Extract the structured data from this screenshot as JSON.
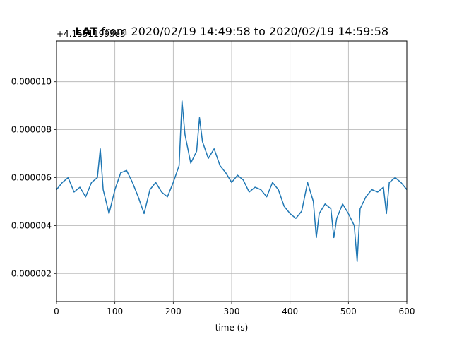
{
  "chart_data": {
    "type": "line",
    "title_bold": "LAT",
    "title_rest": " from 2020/02/19 14:49:58 to 2020/02/19 14:59:58",
    "offset_label": "+4.15511993e3",
    "xlabel": "time (s)",
    "ylabel": "",
    "xlim": [
      0,
      600
    ],
    "ylim": [
      8.3e-07,
      1.17e-05
    ],
    "x_ticks": [
      0,
      100,
      200,
      300,
      400,
      500,
      600
    ],
    "x_tick_labels": [
      "0",
      "100",
      "200",
      "300",
      "400",
      "500",
      "600"
    ],
    "y_ticks": [
      2e-06,
      4e-06,
      6e-06,
      8e-06,
      1e-05
    ],
    "y_tick_labels": [
      "0.000002",
      "0.000004",
      "0.000006",
      "0.000008",
      "0.000010"
    ],
    "grid": true,
    "line_color": "#1f77b4",
    "series": [
      {
        "x": [
          0,
          10,
          20,
          30,
          40,
          50,
          60,
          70,
          75,
          80,
          90,
          100,
          110,
          120,
          130,
          140,
          150,
          160,
          170,
          180,
          190,
          200,
          210,
          215,
          220,
          230,
          240,
          245,
          250,
          260,
          270,
          280,
          290,
          300,
          310,
          320,
          330,
          340,
          350,
          360,
          370,
          380,
          390,
          400,
          410,
          420,
          430,
          440,
          445,
          450,
          460,
          470,
          475,
          480,
          490,
          500,
          510,
          515,
          520,
          530,
          540,
          550,
          560,
          565,
          570,
          580,
          590,
          600
        ],
        "y": [
          5.5e-06,
          5.8e-06,
          6e-06,
          5.4e-06,
          5.6e-06,
          5.2e-06,
          5.8e-06,
          6e-06,
          7.2e-06,
          5.5e-06,
          4.5e-06,
          5.5e-06,
          6.2e-06,
          6.3e-06,
          5.8e-06,
          5.2e-06,
          4.5e-06,
          5.5e-06,
          5.8e-06,
          5.4e-06,
          5.2e-06,
          5.8e-06,
          6.5e-06,
          9.2e-06,
          7.8e-06,
          6.6e-06,
          7.1e-06,
          8.5e-06,
          7.5e-06,
          6.8e-06,
          7.2e-06,
          6.5e-06,
          6.2e-06,
          5.8e-06,
          6.1e-06,
          5.9e-06,
          5.4e-06,
          5.6e-06,
          5.5e-06,
          5.2e-06,
          5.8e-06,
          5.5e-06,
          4.8e-06,
          4.5e-06,
          4.3e-06,
          4.6e-06,
          5.8e-06,
          5e-06,
          3.5e-06,
          4.5e-06,
          4.9e-06,
          4.7e-06,
          3.5e-06,
          4.3e-06,
          4.9e-06,
          4.5e-06,
          4e-06,
          2.5e-06,
          4.7e-06,
          5.2e-06,
          5.5e-06,
          5.4e-06,
          5.6e-06,
          4.5e-06,
          5.8e-06,
          6e-06,
          5.8e-06,
          5.5e-06
        ]
      }
    ]
  }
}
